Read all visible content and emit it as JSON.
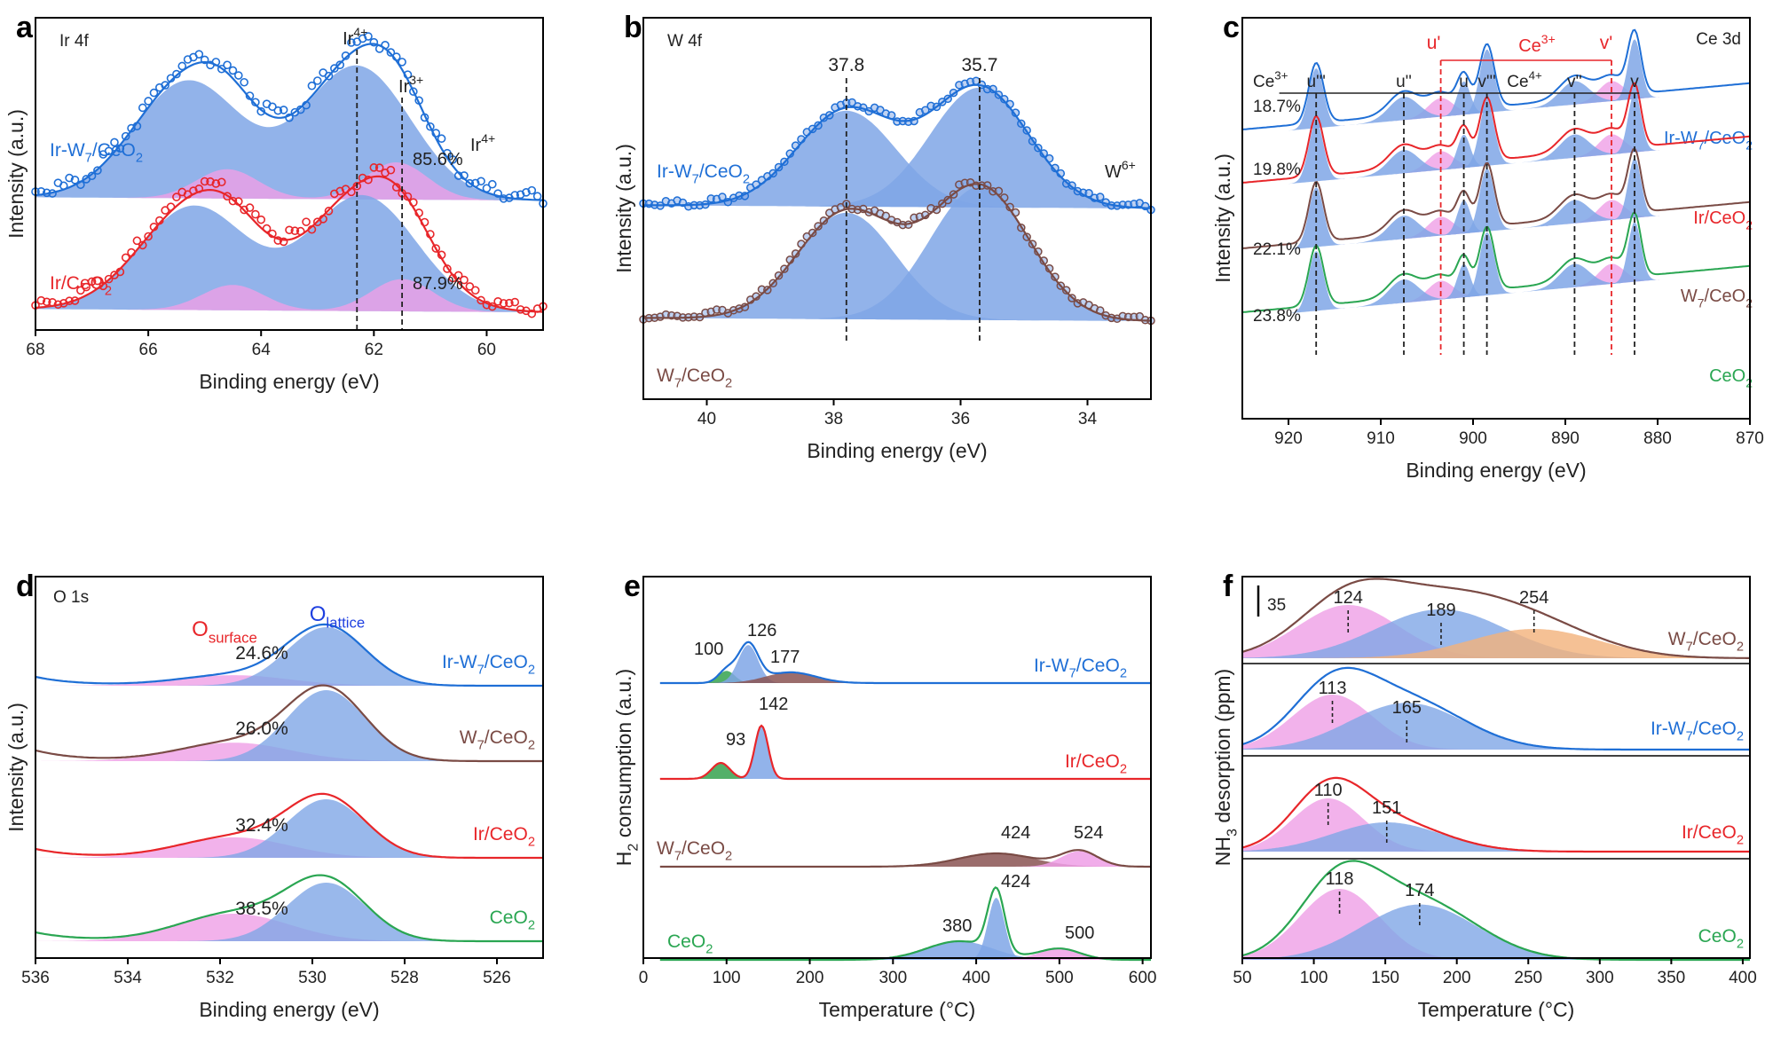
{
  "colors": {
    "blue": "#1f6fd6",
    "red": "#e8262a",
    "brown": "#7a4b45",
    "green": "#2aa652",
    "fill_blue": "#7fa6e6",
    "fill_pink": "#ef9fe6",
    "fill_green": "#35a24f",
    "fill_brown": "#8a5452",
    "fill_orange": "#f2b27a"
  },
  "chart_data": [
    {
      "panel": "a",
      "type": "line",
      "title": "Ir 4f",
      "xlabel": "Binding energy (eV)",
      "ylabel": "Intensity (a.u.)",
      "xlim": [
        68,
        59
      ],
      "xticks": [
        "68",
        "66",
        "64",
        "62",
        "60"
      ],
      "reference_lines": [
        {
          "x": 62.3,
          "label": "Ir4+"
        },
        {
          "x": 61.5,
          "label": "Ir3+"
        }
      ],
      "series": [
        {
          "name": "Ir-W7/CeO2",
          "color": "blue",
          "percent": "85.6%",
          "percent_label": "Ir4+",
          "peaks": [
            65.3,
            62.3
          ],
          "doublet_height": 0.88
        },
        {
          "name": "Ir/CeO2",
          "color": "red",
          "percent": "87.9%",
          "peaks": [
            65.2,
            62.2
          ],
          "doublet_height": 0.9
        }
      ]
    },
    {
      "panel": "b",
      "type": "line",
      "title": "W 4f",
      "xlabel": "Binding energy (eV)",
      "ylabel": "Intensity (a.u.)",
      "xlim": [
        41,
        33
      ],
      "xticks": [
        "40",
        "38",
        "36",
        "34"
      ],
      "peak_labels": [
        "37.8",
        "35.7"
      ],
      "species_label": "W6+",
      "series": [
        {
          "name": "Ir-W7/CeO2",
          "color": "blue",
          "peaks": [
            37.8,
            35.7
          ]
        },
        {
          "name": "W7/CeO2",
          "color": "brown",
          "peaks": [
            37.8,
            35.7
          ]
        }
      ]
    },
    {
      "panel": "c",
      "type": "line",
      "title": "Ce 3d",
      "xlabel": "Binding energy (eV)",
      "ylabel": "Intensity (a.u.)",
      "xlim": [
        925,
        870
      ],
      "xticks": [
        "920",
        "910",
        "900",
        "890",
        "880",
        "870"
      ],
      "peak_labels": [
        "u'''",
        "u''",
        "u",
        "v'''",
        "v''",
        "v",
        "u'",
        "v'"
      ],
      "group_labels": [
        "Ce3+",
        "Ce4+"
      ],
      "ce3_label": "Ce3+",
      "series": [
        {
          "name": "Ir-W7/CeO2",
          "color": "blue",
          "percent": "18.7%"
        },
        {
          "name": "Ir/CeO2",
          "color": "red",
          "percent": "19.8%"
        },
        {
          "name": "W7/CeO2",
          "color": "brown",
          "percent": "22.1%"
        },
        {
          "name": "CeO2",
          "color": "green",
          "percent": "23.8%"
        }
      ]
    },
    {
      "panel": "d",
      "type": "line",
      "title": "O 1s",
      "xlabel": "Binding energy (eV)",
      "ylabel": "Intensity (a.u.)",
      "xlim": [
        536,
        525
      ],
      "xticks": [
        "536",
        "534",
        "532",
        "530",
        "528",
        "526"
      ],
      "component_labels": {
        "surface": "Osurface",
        "lattice": "Olattice"
      },
      "series": [
        {
          "name": "Ir-W7/CeO2",
          "color": "blue",
          "percent": "24.6%"
        },
        {
          "name": "W7/CeO2",
          "color": "brown",
          "percent": "26.0%"
        },
        {
          "name": "Ir/CeO2",
          "color": "red",
          "percent": "32.4%"
        },
        {
          "name": "CeO2",
          "color": "green",
          "percent": "38.5%"
        }
      ]
    },
    {
      "panel": "e",
      "type": "line",
      "title": "",
      "xlabel": "Temperature (°C)",
      "ylabel": "H2 consumption (a.u.)",
      "xlim": [
        0,
        610
      ],
      "xticks": [
        "0",
        "100",
        "200",
        "300",
        "400",
        "500",
        "600"
      ],
      "series": [
        {
          "name": "Ir-W7/CeO2",
          "color": "blue",
          "peak_labels": [
            "100",
            "126",
            "177"
          ]
        },
        {
          "name": "Ir/CeO2",
          "color": "red",
          "peak_labels": [
            "93",
            "142"
          ]
        },
        {
          "name": "W7/CeO2",
          "color": "brown",
          "peak_labels": [
            "424",
            "524"
          ]
        },
        {
          "name": "CeO2",
          "color": "green",
          "peak_labels": [
            "380",
            "424",
            "500"
          ]
        }
      ]
    },
    {
      "panel": "f",
      "type": "line",
      "title": "",
      "xlabel": "Temperature (°C)",
      "ylabel": "NH3 desorption (ppm)",
      "xlim": [
        50,
        405
      ],
      "xticks": [
        "50",
        "100",
        "150",
        "200",
        "250",
        "300",
        "350",
        "400"
      ],
      "scale_bar": "35",
      "series": [
        {
          "name": "W7/CeO2",
          "color": "brown",
          "peak_labels": [
            "124",
            "189",
            "254"
          ]
        },
        {
          "name": "Ir-W7/CeO2",
          "color": "blue",
          "peak_labels": [
            "113",
            "165"
          ]
        },
        {
          "name": "Ir/CeO2",
          "color": "red",
          "peak_labels": [
            "110",
            "151"
          ]
        },
        {
          "name": "CeO2",
          "color": "green",
          "peak_labels": [
            "118",
            "174"
          ]
        }
      ]
    }
  ],
  "panel_letters": [
    "a",
    "b",
    "c",
    "d",
    "e",
    "f"
  ]
}
